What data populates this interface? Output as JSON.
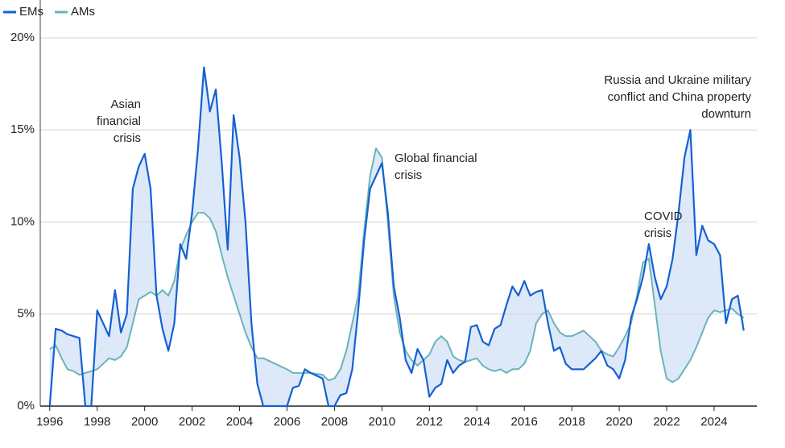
{
  "chart_data": {
    "type": "line",
    "x": [
      1996,
      1996.25,
      1996.5,
      1996.75,
      1997,
      1997.25,
      1997.5,
      1997.75,
      1998,
      1998.25,
      1998.5,
      1998.75,
      1999,
      1999.25,
      1999.5,
      1999.75,
      2000,
      2000.25,
      2000.5,
      2000.75,
      2001,
      2001.25,
      2001.5,
      2001.75,
      2002,
      2002.25,
      2002.5,
      2002.75,
      2003,
      2003.25,
      2003.5,
      2003.75,
      2004,
      2004.25,
      2004.5,
      2004.75,
      2005,
      2005.5,
      2006,
      2006.25,
      2006.5,
      2006.75,
      2007,
      2007.5,
      2007.75,
      2008,
      2008.25,
      2008.5,
      2008.75,
      2009,
      2009.25,
      2009.5,
      2009.75,
      2010,
      2010.25,
      2010.5,
      2010.75,
      2011,
      2011.25,
      2011.5,
      2011.75,
      2012,
      2012.25,
      2012.5,
      2012.75,
      2013,
      2013.25,
      2013.5,
      2013.75,
      2014,
      2014.25,
      2014.5,
      2014.75,
      2015,
      2015.25,
      2015.5,
      2015.75,
      2016,
      2016.25,
      2016.5,
      2016.75,
      2017,
      2017.25,
      2017.5,
      2017.75,
      2018,
      2018.5,
      2019,
      2019.25,
      2019.5,
      2019.75,
      2020,
      2020.25,
      2020.5,
      2020.75,
      2021,
      2021.25,
      2021.5,
      2021.75,
      2022,
      2022.25,
      2022.5,
      2022.75,
      2023,
      2023.25,
      2023.5,
      2023.75,
      2024,
      2024.25,
      2024.5,
      2024.75,
      2025,
      2025.25
    ],
    "series": [
      {
        "name": "EMs",
        "color": "#1560d4",
        "values": [
          0,
          4.2,
          4.1,
          3.9,
          3.8,
          3.7,
          0,
          0,
          5.2,
          4.5,
          3.8,
          6.3,
          4.0,
          5.0,
          11.8,
          13.0,
          13.7,
          11.8,
          6.0,
          4.2,
          3.0,
          4.5,
          8.8,
          8.0,
          10.5,
          14.0,
          18.4,
          16.0,
          17.2,
          13.2,
          8.5,
          15.8,
          13.5,
          10.0,
          4.5,
          1.2,
          0,
          0,
          0,
          1.0,
          1.1,
          2.0,
          1.8,
          1.5,
          0,
          0,
          0.6,
          0.7,
          2.0,
          5.2,
          9.0,
          11.8,
          12.5,
          13.2,
          10.5,
          6.5,
          4.8,
          2.5,
          1.8,
          3.1,
          2.5,
          0.5,
          1.0,
          1.2,
          2.5,
          1.8,
          2.2,
          2.4,
          4.3,
          4.4,
          3.5,
          3.3,
          4.2,
          4.4,
          5.5,
          6.5,
          6.0,
          6.8,
          6.0,
          6.2,
          6.3,
          4.5,
          3.0,
          3.2,
          2.3,
          2.0,
          2.0,
          2.6,
          3.0,
          2.2,
          2.0,
          1.5,
          2.5,
          4.8,
          5.8,
          7.0,
          8.8,
          7.0,
          5.8,
          6.5,
          8.0,
          10.5,
          13.5,
          15.0,
          8.2,
          9.8,
          9.0,
          8.8,
          8.2,
          4.5,
          5.8,
          6.0,
          4.1
        ]
      },
      {
        "name": "AMs",
        "color": "#6bb3b8",
        "values": [
          3.1,
          3.3,
          2.6,
          2.0,
          1.9,
          1.7,
          1.8,
          1.9,
          2.0,
          2.3,
          2.6,
          2.5,
          2.7,
          3.2,
          4.5,
          5.8,
          6.0,
          6.2,
          6.0,
          6.3,
          6.0,
          6.8,
          8.5,
          9.3,
          10.0,
          10.5,
          10.5,
          10.2,
          9.5,
          8.2,
          7.0,
          6.0,
          5.0,
          4.0,
          3.2,
          2.6,
          2.6,
          2.3,
          2.0,
          1.8,
          1.8,
          1.8,
          1.8,
          1.7,
          1.4,
          1.5,
          2.0,
          3.0,
          4.5,
          6.0,
          9.5,
          12.5,
          14.0,
          13.5,
          10.0,
          6.0,
          4.0,
          3.0,
          2.5,
          2.2,
          2.5,
          2.8,
          3.5,
          3.8,
          3.5,
          2.7,
          2.5,
          2.4,
          2.5,
          2.6,
          2.2,
          2.0,
          1.9,
          2.0,
          1.8,
          2.0,
          2.0,
          2.3,
          3.0,
          4.5,
          5.0,
          5.2,
          4.5,
          4.0,
          3.8,
          3.8,
          4.1,
          3.5,
          3.0,
          2.8,
          2.7,
          3.2,
          3.8,
          4.5,
          6.0,
          7.8,
          8.0,
          5.5,
          3.0,
          1.5,
          1.3,
          1.5,
          2.0,
          2.5,
          3.2,
          4.0,
          4.8,
          5.2,
          5.1,
          5.2,
          5.3,
          5.0,
          4.8
        ]
      }
    ],
    "xlim": [
      1995.6,
      2025.8
    ],
    "xticks": [
      1996,
      1998,
      2000,
      2002,
      2004,
      2006,
      2008,
      2010,
      2012,
      2014,
      2016,
      2018,
      2020,
      2022,
      2024
    ],
    "ylim": [
      0,
      20
    ],
    "yticks": [
      {
        "value": 0,
        "label": "0%"
      },
      {
        "value": 5,
        "label": "5%"
      },
      {
        "value": 10,
        "label": "10%"
      },
      {
        "value": 15,
        "label": "15%"
      },
      {
        "value": 20,
        "label": "20%"
      }
    ],
    "grid": true,
    "legend": "top-left",
    "fill_between_color": "#dde9f9",
    "annotations": [
      {
        "lines": [
          "Asian",
          "financial",
          "crisis"
        ]
      },
      {
        "lines": [
          "Global financial",
          "crisis"
        ]
      },
      {
        "lines": [
          "COVID",
          "crisis"
        ]
      },
      {
        "lines": [
          "Russia and Ukraine military",
          "conflict and China property",
          "downturn"
        ]
      }
    ]
  }
}
